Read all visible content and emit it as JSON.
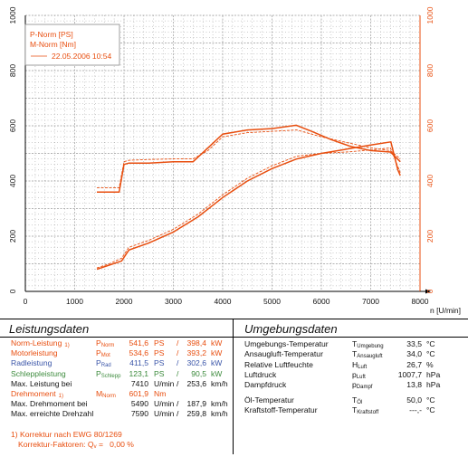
{
  "colors": {
    "power": "#e84e0f",
    "torque": "#e84e0f",
    "axis": "#000000",
    "grid": "#9a9a9a",
    "blue": "#3a55a8",
    "green": "#3d8b3d"
  },
  "chart_data": {
    "type": "line",
    "xlabel": "n [U/min]",
    "x_ticks": [
      "0",
      "1000",
      "2000",
      "3000",
      "4000",
      "5000",
      "6000",
      "7000",
      "8000"
    ],
    "y_left_ticks": [
      "0",
      "200",
      "400",
      "600",
      "800",
      "1000"
    ],
    "y_right_ticks": [
      "0",
      "200",
      "400",
      "600",
      "800",
      "1000"
    ],
    "xlim": [
      0,
      8000
    ],
    "ylim": [
      0,
      1000
    ],
    "grid": true,
    "legend_position": "top-left",
    "legend": {
      "p_norm": "P-Norm [PS]",
      "m_norm": "M-Norm [Nm]",
      "compare": "22.05.2006 10:54"
    },
    "series": [
      {
        "name": "P-Norm [PS]",
        "style": "solid",
        "x": [
          1450,
          1700,
          1950,
          2100,
          2500,
          3000,
          3500,
          4000,
          4500,
          5000,
          5500,
          6000,
          6500,
          7000,
          7410,
          7550,
          7600
        ],
        "y": [
          80,
          95,
          110,
          150,
          175,
          215,
          270,
          340,
          400,
          445,
          480,
          500,
          515,
          530,
          541.6,
          440,
          420
        ]
      },
      {
        "name": "P-Norm [PS]",
        "style": "dashed",
        "x": [
          1450,
          1700,
          1950,
          2100,
          2500,
          3000,
          3500,
          4000,
          4500,
          5000,
          5500,
          6000,
          6500,
          7000,
          7400,
          7600
        ],
        "y": [
          85,
          100,
          120,
          160,
          185,
          225,
          280,
          350,
          410,
          455,
          490,
          500,
          505,
          512,
          520,
          430
        ]
      },
      {
        "name": "M-Norm [Nm]",
        "style": "solid",
        "x": [
          1450,
          1900,
          2000,
          2100,
          2500,
          3000,
          3400,
          3700,
          4000,
          4500,
          5000,
          5490,
          5800,
          6200,
          6600,
          7000,
          7400,
          7600
        ],
        "y": [
          360,
          360,
          460,
          465,
          465,
          470,
          470,
          520,
          570,
          585,
          590,
          601.9,
          580,
          550,
          525,
          510,
          505,
          470
        ]
      },
      {
        "name": "M-Norm [Nm]",
        "style": "dashed",
        "x": [
          1450,
          1900,
          2000,
          2100,
          2500,
          3000,
          3400,
          3700,
          4000,
          4500,
          5000,
          5500,
          6000,
          6500,
          7000,
          7400,
          7600
        ],
        "y": [
          375,
          375,
          470,
          475,
          478,
          480,
          480,
          510,
          560,
          575,
          580,
          585,
          560,
          540,
          520,
          510,
          480
        ]
      }
    ]
  },
  "leistung": {
    "title": "Leistungsdaten",
    "rows": [
      {
        "label": "Norm-Leistung",
        "footnote": "1)",
        "sym": "P",
        "sub": "Norm",
        "v1": "541,6",
        "u1": "PS",
        "sep": "/",
        "v2": "398,4",
        "u2": "kW"
      },
      {
        "label": "Motorleistung",
        "footnote": "",
        "sym": "P",
        "sub": "Mot",
        "v1": "534,6",
        "u1": "PS",
        "sep": "/",
        "v2": "393,2",
        "u2": "kW"
      },
      {
        "label": "Radleistung",
        "footnote": "",
        "sym": "P",
        "sub": "Rad",
        "v1": "411,5",
        "u1": "PS",
        "sep": "/",
        "v2": "302,6",
        "u2": "kW"
      },
      {
        "label": "Schleppleistung",
        "footnote": "",
        "sym": "P",
        "sub": "Schlepp",
        "v1": "123,1",
        "u1": "PS",
        "sep": "/",
        "v2": "90,5",
        "u2": "kW"
      },
      {
        "label": "Max. Leistung bei",
        "footnote": "",
        "sym": "",
        "sub": "",
        "v1": "7410",
        "u1": "U/min",
        "sep": "/",
        "v2": "253,6",
        "u2": "km/h"
      },
      {
        "label": "Drehmoment",
        "footnote": "1)",
        "sym": "M",
        "sub": "Norm",
        "v1": "601,9",
        "u1": "Nm",
        "sep": "",
        "v2": "",
        "u2": ""
      },
      {
        "label": "Max. Drehmoment bei",
        "footnote": "",
        "sym": "",
        "sub": "",
        "v1": "5490",
        "u1": "U/min",
        "sep": "/",
        "v2": "187,9",
        "u2": "km/h"
      },
      {
        "label": "Max. erreichte Drehzahl",
        "footnote": "",
        "sym": "",
        "sub": "",
        "v1": "7590",
        "u1": "U/min",
        "sep": "/",
        "v2": "259,8",
        "u2": "km/h"
      }
    ],
    "note1": "1) Korrektur nach EWG 80/1269",
    "note2_prefix": "Korrektur-Faktoren: Q",
    "note2_sub": "v",
    "note2_suffix": " =   0,00 %"
  },
  "umgebung": {
    "title": "Umgebungsdaten",
    "rows": [
      {
        "label": "Umgebungs-Temperatur",
        "sym": "T",
        "sub": "Umgebung",
        "value": "33,5",
        "unit": "°C"
      },
      {
        "label": "Ansaugluft-Temperatur",
        "sym": "T",
        "sub": "Ansaugluft",
        "value": "34,0",
        "unit": "°C"
      },
      {
        "label": "Relative Luftfeuchte",
        "sym": "H",
        "sub": "Luft",
        "value": "26,7",
        "unit": "%"
      },
      {
        "label": "Luftdruck",
        "sym": "p",
        "sub": "Luft",
        "value": "1007,7",
        "unit": "hPa"
      },
      {
        "label": "Dampfdruck",
        "sym": "p",
        "sub": "Dampf",
        "value": "13,8",
        "unit": "hPa"
      },
      {
        "label": "Öl-Temperatur",
        "sym": "T",
        "sub": "Öl",
        "value": "50,0",
        "unit": "°C"
      },
      {
        "label": "Kraftstoff-Temperatur",
        "sym": "T",
        "sub": "Kraftstoff",
        "value": "---,-",
        "unit": "°C"
      }
    ]
  }
}
